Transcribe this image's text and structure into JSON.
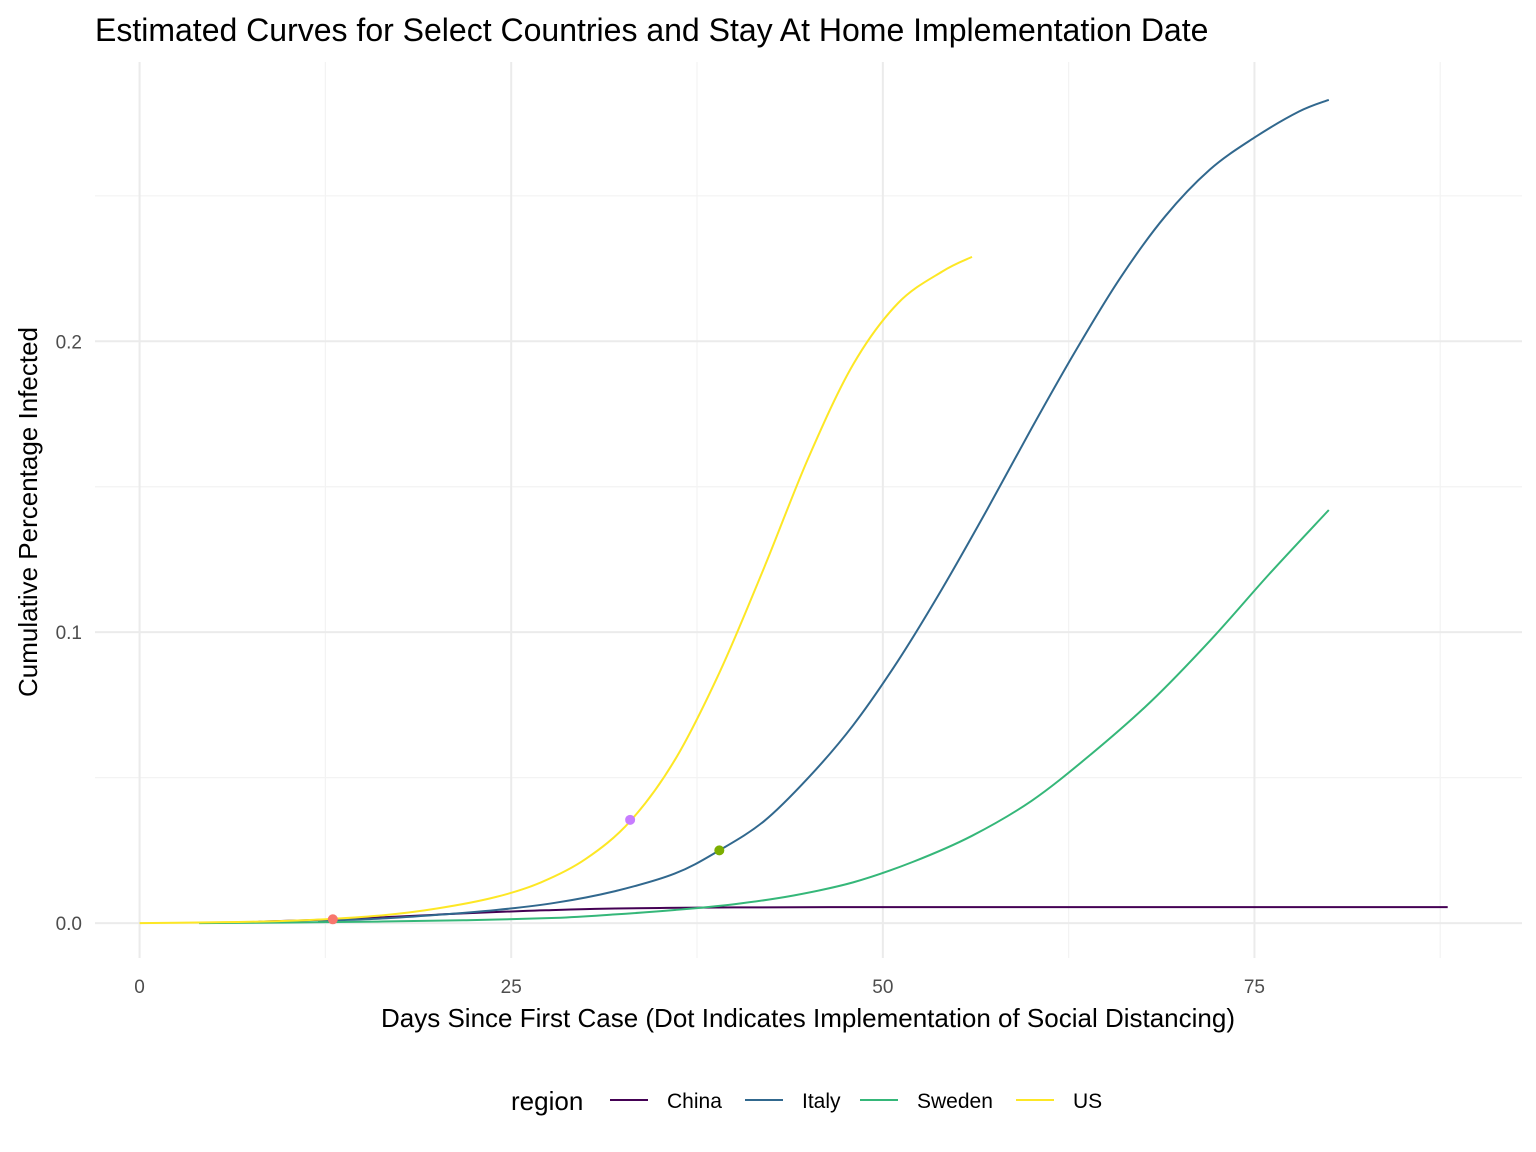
{
  "chart_data": {
    "type": "line",
    "title": "Estimated Curves for Select Countries and Stay At Home Implementation Date",
    "xlabel": "Days Since First Case (Dot Indicates Implementation of Social Distancing)",
    "ylabel": "Cumulative Percentage Infected",
    "xlim": [
      -3,
      93
    ],
    "ylim": [
      -0.012,
      0.296
    ],
    "x_ticks": [
      0,
      25,
      50,
      75
    ],
    "x_tick_labels": [
      "0",
      "25",
      "50",
      "75"
    ],
    "y_ticks": [
      0.0,
      0.1,
      0.2
    ],
    "y_tick_labels": [
      "0.0",
      "0.1",
      "0.2"
    ],
    "grid": true,
    "legend": {
      "title": "region",
      "position": "bottom",
      "entries": [
        "China",
        "Italy",
        "Sweden",
        "US"
      ]
    },
    "series": [
      {
        "name": "China",
        "color": "#440154",
        "x": [
          8,
          10,
          12,
          14,
          16,
          18,
          20,
          22,
          24,
          26,
          28,
          30,
          32,
          35,
          40,
          50,
          60,
          70,
          80,
          88
        ],
        "y": [
          0.0005,
          0.0008,
          0.0011,
          0.0015,
          0.0019,
          0.0024,
          0.0029,
          0.0034,
          0.0038,
          0.0042,
          0.0045,
          0.0048,
          0.005,
          0.0052,
          0.0054,
          0.0055,
          0.0055,
          0.0055,
          0.0055,
          0.0055
        ]
      },
      {
        "name": "Italy",
        "color": "#31688E",
        "x": [
          12,
          16,
          20,
          24,
          28,
          32,
          36,
          39,
          42,
          45,
          48,
          51,
          54,
          57,
          60,
          63,
          66,
          69,
          72,
          75,
          78,
          80
        ],
        "y": [
          0.0008,
          0.0015,
          0.0028,
          0.0045,
          0.007,
          0.011,
          0.017,
          0.025,
          0.035,
          0.05,
          0.068,
          0.09,
          0.115,
          0.142,
          0.17,
          0.197,
          0.222,
          0.243,
          0.259,
          0.27,
          0.279,
          0.283
        ]
      },
      {
        "name": "Sweden",
        "color": "#35B779",
        "x": [
          4,
          10,
          16,
          22,
          28,
          32,
          36,
          40,
          44,
          48,
          52,
          56,
          60,
          64,
          68,
          72,
          76,
          80
        ],
        "y": [
          0.0,
          0.0002,
          0.0005,
          0.001,
          0.0018,
          0.003,
          0.0045,
          0.0065,
          0.0095,
          0.014,
          0.021,
          0.03,
          0.042,
          0.058,
          0.076,
          0.097,
          0.12,
          0.142
        ]
      },
      {
        "name": "US",
        "color": "#FDE725",
        "x": [
          0,
          4,
          8,
          12,
          16,
          20,
          24,
          27,
          30,
          33,
          36,
          39,
          42,
          45,
          48,
          51,
          54,
          56
        ],
        "y": [
          0.0,
          0.0002,
          0.0005,
          0.0012,
          0.0025,
          0.005,
          0.009,
          0.014,
          0.022,
          0.035,
          0.056,
          0.086,
          0.122,
          0.16,
          0.192,
          0.213,
          0.224,
          0.229
        ]
      }
    ],
    "points": [
      {
        "region": "China",
        "x": 13,
        "y": 0.0013,
        "color": "#F8766D"
      },
      {
        "region": "Italy",
        "x": 39,
        "y": 0.025,
        "color": "#7CAE00"
      },
      {
        "region": "US",
        "x": 33,
        "y": 0.0355,
        "color": "#C77CFF"
      }
    ]
  }
}
